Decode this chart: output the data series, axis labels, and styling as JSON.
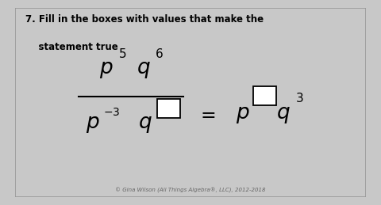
{
  "title_line1": "7. Fill in the boxes with values that make the",
  "title_line2": "    statement true",
  "bg_color": "#c8c8c8",
  "card_color": "#dcdcdc",
  "text_color": "#000000",
  "copyright": "© Gina Wilson (All Things Algebra®, LLC), 2012-2018",
  "figsize": [
    4.8,
    2.59
  ],
  "dpi": 100
}
